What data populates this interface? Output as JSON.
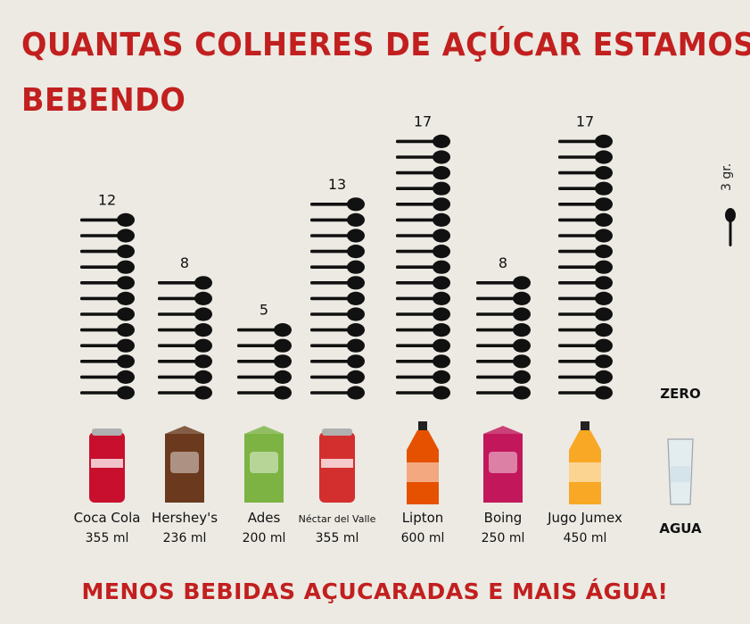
{
  "title_line1": "QUANTAS COLHERES DE AÇÚCAR ESTAMOS",
  "title_line2": "BEBENDO",
  "footer": "MENOS BEBIDAS AÇUCARADAS E MAIS ÁGUA!",
  "scale_label": "3 gr.",
  "zero_label": "ZERO",
  "colors": {
    "title": "#c21f1f",
    "spoon": "#111111",
    "background": "#eceae3"
  },
  "chart_data": {
    "type": "bar",
    "unit": "spoons",
    "categories": [
      {
        "name": "Coca Cola",
        "volume": "355 ml",
        "value": 12,
        "label": "12",
        "icon": "soda-can-icon",
        "color": "#c8102e"
      },
      {
        "name": "Hershey's",
        "volume": "236 ml",
        "value": 8,
        "label": "8",
        "icon": "chocolate-milk-carton-icon",
        "color": "#6b3a1e"
      },
      {
        "name": "Ades",
        "volume": "200 ml",
        "value": 5,
        "label": "5",
        "icon": "soy-drink-carton-icon",
        "color": "#7cb342"
      },
      {
        "name": "Néctar del Valle",
        "volume": "355 ml",
        "value": 13,
        "label": "13",
        "icon": "juice-can-icon",
        "color": "#d32f2f"
      },
      {
        "name": "Lipton",
        "volume": "600 ml",
        "value": 17,
        "label": "17",
        "icon": "iced-tea-bottle-icon",
        "color": "#e65100"
      },
      {
        "name": "Boing",
        "volume": "250 ml",
        "value": 8,
        "label": "8",
        "icon": "juice-box-icon",
        "color": "#c2185b"
      },
      {
        "name": "Jugo Jumex",
        "volume": "450 ml",
        "value": 17,
        "label": "17",
        "icon": "juice-bottle-icon",
        "color": "#f9a825"
      },
      {
        "name": "AGUA",
        "volume": "",
        "value": 0,
        "label": "",
        "icon": "water-glass-icon",
        "color": "#cfd8dc"
      }
    ]
  }
}
